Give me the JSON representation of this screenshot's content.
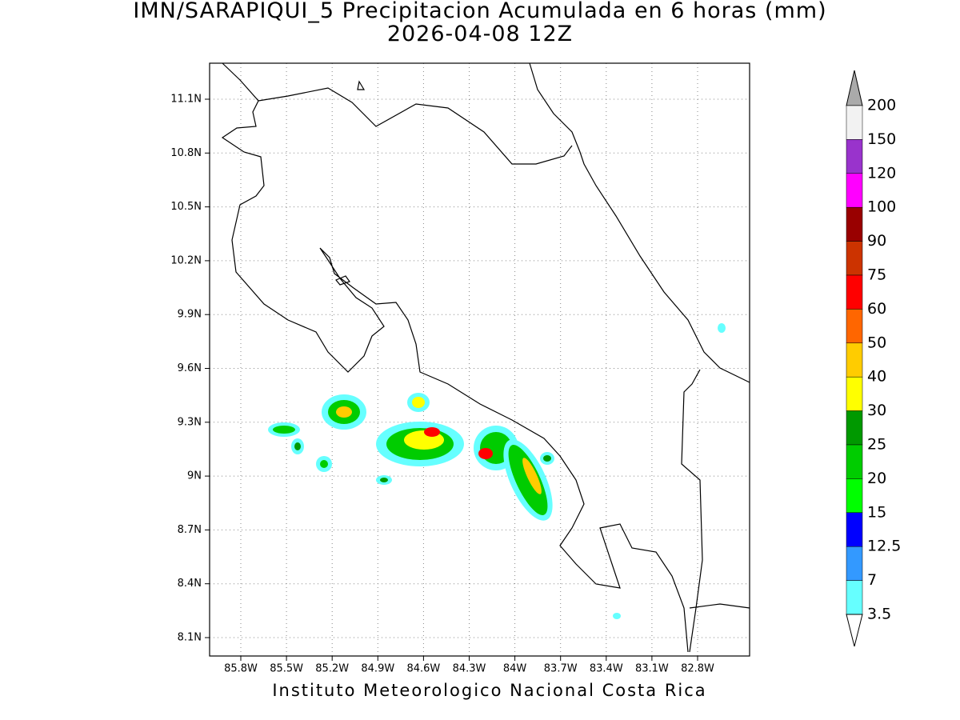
{
  "title": "IMN/SARAPIQUI_5 Precipitacion Acumulada en 6 horas (mm)",
  "subtitle": "2026-04-08 12Z",
  "x_axis": {
    "ticks": [
      "85.8W",
      "85.5W",
      "85.2W",
      "84.9W",
      "84.6W",
      "84.3W",
      "84W",
      "83.7W",
      "83.4W",
      "83.1W",
      "82.8W"
    ]
  },
  "y_axis": {
    "ticks": [
      "11.1N",
      "10.8N",
      "10.5N",
      "10.2N",
      "9.9N",
      "9.6N",
      "9.3N",
      "9N",
      "8.7N",
      "8.4N",
      "8.1N"
    ]
  },
  "colorbar": {
    "labels": [
      "200",
      "150",
      "120",
      "100",
      "90",
      "75",
      "60",
      "50",
      "40",
      "30",
      "25",
      "20",
      "15",
      "12.5",
      "7",
      "3.5"
    ],
    "colors": [
      "#f2f2f2",
      "#9933cc",
      "#ff00ff",
      "#990000",
      "#cc3300",
      "#ff0000",
      "#ff6600",
      "#ffcc00",
      "#ffff00",
      "#009900",
      "#00cc00",
      "#00ff00",
      "#0000ff",
      "#3399ff",
      "#66ffff"
    ],
    "over_color": "#aaaaaa",
    "under_color": "#ffffff"
  },
  "footer": "Instituto Meteorologico Nacional Costa Rica"
}
